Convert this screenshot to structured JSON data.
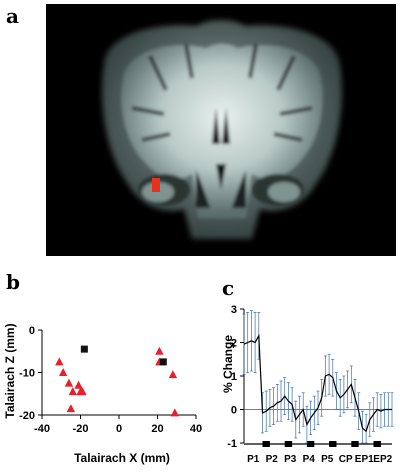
{
  "figure": {
    "panel_a_label": "a",
    "panel_b_label": "b",
    "panel_c_label": "c"
  },
  "colors": {
    "marker_red": "#e8202a",
    "marker_black": "#111111",
    "brain_highlight": "#e8301c",
    "condition_bar": "#000000"
  },
  "chart_data": [
    {
      "type": "scatter",
      "panel": "b",
      "xlabel": "Talairach X (mm)",
      "ylabel": "Talairach Z (mm)",
      "xlim": [
        -40,
        40
      ],
      "ylim": [
        -20,
        0
      ],
      "xticks": [
        "-40",
        "-20",
        "0",
        "20",
        "40"
      ],
      "yticks": [
        "0",
        "-10",
        "-20"
      ],
      "series": [
        {
          "marker": "triangle",
          "color": "#e8202a",
          "points": [
            [
              -31,
              -7.5
            ],
            [
              -29,
              -10
            ],
            [
              -26,
              -12.5
            ],
            [
              -25,
              -18.5
            ],
            [
              -24,
              -14.5
            ],
            [
              -21,
              -13
            ],
            [
              -20,
              -14.5
            ],
            [
              -19,
              -14.5
            ],
            [
              21,
              -5
            ],
            [
              21,
              -7.5
            ],
            [
              28,
              -10.5
            ],
            [
              29,
              -19.5
            ]
          ]
        },
        {
          "marker": "square",
          "color": "#111111",
          "points": [
            [
              -18,
              -4.5
            ],
            [
              23,
              -7.5
            ]
          ]
        }
      ]
    },
    {
      "type": "line",
      "panel": "c",
      "ylabel": "% Change",
      "ylim": [
        -1,
        3
      ],
      "yticks": [
        "3",
        "2",
        "1",
        "0",
        "-1"
      ],
      "xticks": [
        "P1",
        "P2",
        "P3",
        "P4",
        "P5",
        "CP",
        "EP1",
        "EP2"
      ],
      "x": [
        0,
        1,
        2,
        3,
        4,
        5,
        6,
        7,
        8,
        9,
        10,
        11,
        12,
        13,
        14,
        15,
        16,
        17,
        18,
        19,
        20,
        21,
        22,
        23,
        24,
        25,
        26,
        27,
        28,
        29,
        30,
        31,
        32,
        33,
        34,
        35,
        36,
        37,
        38,
        39,
        40
      ],
      "y": [
        1.95,
        2.0,
        2.05,
        2.0,
        2.2,
        -0.1,
        -0.05,
        0.05,
        0.1,
        0.2,
        0.25,
        0.4,
        0.25,
        0.15,
        -0.3,
        -0.15,
        0.0,
        -0.45,
        -0.25,
        -0.1,
        0.05,
        0.35,
        1.0,
        1.05,
        0.95,
        0.55,
        0.35,
        0.45,
        0.6,
        0.75,
        0.35,
        -0.05,
        -0.55,
        -0.65,
        -0.3,
        -0.15,
        0.0,
        -0.05,
        0.0,
        0.0,
        0.0
      ],
      "error": [
        0.9,
        0.9,
        0.9,
        0.9,
        0.7,
        0.6,
        0.6,
        0.55,
        0.55,
        0.55,
        0.6,
        0.55,
        0.55,
        0.5,
        0.55,
        0.55,
        0.5,
        0.55,
        0.5,
        0.5,
        0.5,
        0.55,
        0.6,
        0.6,
        0.55,
        0.55,
        0.55,
        0.55,
        0.55,
        0.55,
        0.55,
        0.55,
        0.5,
        0.5,
        0.5,
        0.5,
        0.5,
        0.5,
        0.5,
        0.5,
        0.5
      ],
      "condition_blocks": [
        [
          5,
          7
        ],
        [
          11,
          13
        ],
        [
          17,
          19
        ],
        [
          23,
          25
        ],
        [
          29,
          31
        ],
        [
          35,
          37
        ]
      ]
    }
  ]
}
